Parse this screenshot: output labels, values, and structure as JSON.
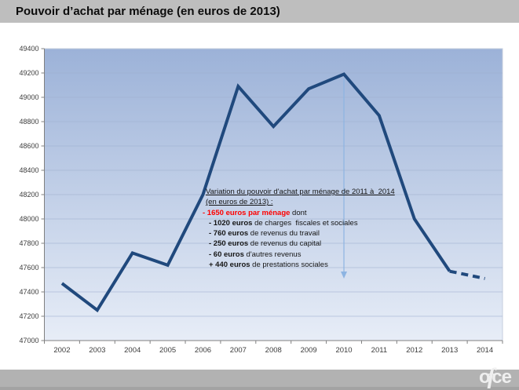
{
  "title": "Pouvoir d’achat par ménage (en euros de 2013)",
  "logo": {
    "part1": "o",
    "part2": "f",
    "part3": "ce"
  },
  "annotation": {
    "heading1": "Variation du pouvoir d'achat par ménage de 2011 à  2014",
    "heading2": "(en euros de 2013) :",
    "main_bold_red": "- 1650 euros par ménage",
    "main_rest": " dont",
    "items": [
      {
        "bold": "- 1020 euros",
        "rest": " de charges  fiscales et sociales"
      },
      {
        "bold": "- 760 euros",
        "rest": " de revenus du travail"
      },
      {
        "bold": "- 250 euros",
        "rest": " de revenus du capital"
      },
      {
        "bold": "- 60 euros",
        "rest": " d'autres revenus"
      },
      {
        "bold": "+ 440 euros",
        "rest": " de prestations sociales"
      }
    ]
  },
  "chart_data": {
    "type": "line",
    "title": "Pouvoir d’achat par ménage (en euros de 2013)",
    "x": [
      2002,
      2003,
      2004,
      2005,
      2006,
      2007,
      2008,
      2009,
      2010,
      2011,
      2012,
      2013,
      2014
    ],
    "series": [
      {
        "name": "Pouvoir d’achat par ménage (euros de 2013)",
        "values": [
          47470,
          47250,
          47720,
          47620,
          48200,
          49090,
          48760,
          49070,
          49190,
          48850,
          48000,
          47570,
          47510
        ]
      }
    ],
    "dashed_from_index": 11,
    "xlabel": "",
    "ylabel": "",
    "ylim": [
      47000,
      49400
    ],
    "ytick_step": 200,
    "grid": true,
    "legend": false,
    "line_color": "#20497d",
    "plot_gradient_top": "#9cb2d8",
    "plot_gradient_bottom": "#e7edf7",
    "arrow": {
      "year": 2010,
      "color": "#8db4e2"
    }
  }
}
